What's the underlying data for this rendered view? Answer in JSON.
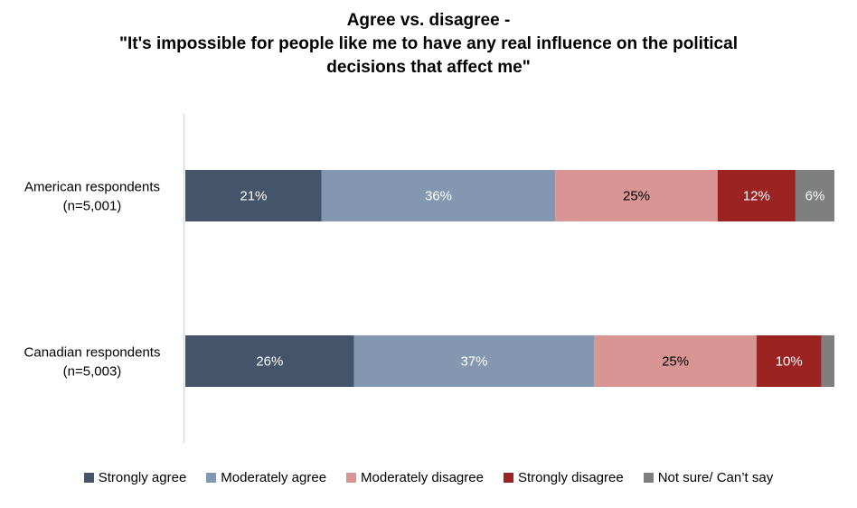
{
  "chart_data": {
    "type": "bar",
    "orientation": "horizontal",
    "stacked": true,
    "title_lines": [
      "Agree vs. disagree -",
      "\"It's impossible for people like me to have any real influence on the political",
      "decisions that affect me\""
    ],
    "categories": [
      [
        "American respondents",
        "(n=5,001)"
      ],
      [
        "Canadian respondents",
        "(n=5,003)"
      ]
    ],
    "series": [
      {
        "name": "Strongly agree",
        "color": "#44546a",
        "label_color": "#ffffff",
        "values": [
          21,
          26
        ]
      },
      {
        "name": "Moderately agree",
        "color": "#8497b0",
        "label_color": "#ffffff",
        "values": [
          36,
          37
        ]
      },
      {
        "name": "Moderately disagree",
        "color": "#d99594",
        "label_color": "#000000",
        "values": [
          25,
          25
        ]
      },
      {
        "name": "Strongly disagree",
        "color": "#9b2423",
        "label_color": "#ffffff",
        "values": [
          12,
          10
        ]
      },
      {
        "name": "Not sure/ Can’t say",
        "color": "#7f7f7f",
        "label_color": "#ffffff",
        "values": [
          6,
          2
        ]
      }
    ],
    "data_labels": [
      [
        "21%",
        "36%",
        "25%",
        "12%",
        "6%"
      ],
      [
        "26%",
        "37%",
        "25%",
        "10%",
        ""
      ]
    ],
    "xlim": [
      0,
      100
    ],
    "grid": false,
    "legend_position": "bottom"
  }
}
